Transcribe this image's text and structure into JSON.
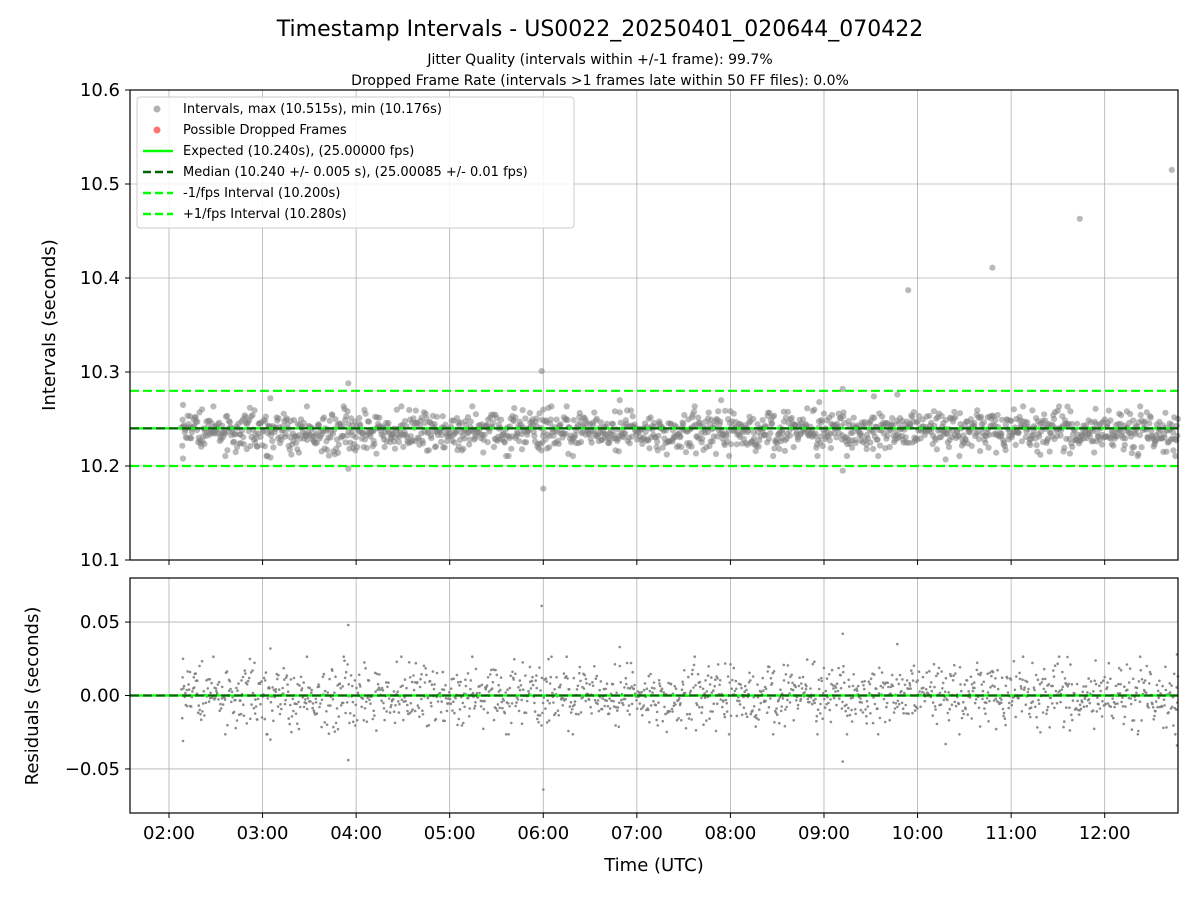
{
  "chart_data": {
    "type": "scatter",
    "title": "Timestamp Intervals - US0022_20250401_020644_070422",
    "subtitle_lines": [
      "Jitter Quality (intervals within +/-1 frame): 99.7%",
      "Dropped Frame Rate (intervals >1 frames late within 50 FF files): 0.0%"
    ],
    "xlabel": "Time (UTC)",
    "x_ticks": [
      "02:00",
      "03:00",
      "04:00",
      "05:00",
      "06:00",
      "07:00",
      "08:00",
      "09:00",
      "10:00",
      "11:00",
      "12:00"
    ],
    "x_range": [
      "01:35",
      "12:47"
    ],
    "grid": true,
    "panels": [
      {
        "id": "intervals",
        "ylabel": "Intervals (seconds)",
        "ylim": [
          10.1,
          10.6
        ],
        "y_ticks": [
          "10.1",
          "10.2",
          "10.3",
          "10.4",
          "10.5",
          "10.6"
        ],
        "legend_position": "upper-left",
        "legend": [
          {
            "label": "Intervals, max (10.515s), min (10.176s)",
            "marker": "circle",
            "color": "#808080"
          },
          {
            "label": "Possible Dropped Frames",
            "marker": "circle",
            "color": "#ff0000"
          },
          {
            "label": "Expected (10.240s), (25.00000 fps)",
            "line": "solid",
            "color": "#00ff00"
          },
          {
            "label": "Median (10.240 +/- 0.005 s), (25.00085 +/- 0.01 fps)",
            "line": "dashed",
            "color": "#006400"
          },
          {
            "label": "-1/fps Interval (10.200s)",
            "line": "dashed",
            "color": "#00ff00"
          },
          {
            "label": "+1/fps Interval (10.280s)",
            "line": "dashed",
            "color": "#00ff00"
          }
        ],
        "reference_lines": [
          {
            "name": "expected",
            "y": 10.24,
            "style": "solid",
            "color": "#00ff00"
          },
          {
            "name": "median",
            "y": 10.24,
            "style": "dashed",
            "color": "#006400"
          },
          {
            "name": "minus-1-fps",
            "y": 10.2,
            "style": "dashed",
            "color": "#00ff00"
          },
          {
            "name": "plus-1-fps",
            "y": 10.28,
            "style": "dashed",
            "color": "#00ff00"
          }
        ],
        "series": {
          "t_start": "02:08",
          "t_end": "12:47",
          "baseline": 10.237,
          "typical_spread": 0.012,
          "count": 1560,
          "color": "#808080",
          "outliers": [
            {
              "t": "02:09",
              "v": 10.265
            },
            {
              "t": "02:09",
              "v": 10.208
            },
            {
              "t": "03:05",
              "v": 10.272
            },
            {
              "t": "03:05",
              "v": 10.209
            },
            {
              "t": "03:55",
              "v": 10.288
            },
            {
              "t": "03:55",
              "v": 10.197
            },
            {
              "t": "05:59",
              "v": 10.301
            },
            {
              "t": "06:00",
              "v": 10.176
            },
            {
              "t": "06:00",
              "v": 10.26
            },
            {
              "t": "06:49",
              "v": 10.27
            },
            {
              "t": "07:54",
              "v": 10.27
            },
            {
              "t": "08:57",
              "v": 10.268
            },
            {
              "t": "09:12",
              "v": 10.282
            },
            {
              "t": "09:12",
              "v": 10.195
            },
            {
              "t": "09:32",
              "v": 10.274
            },
            {
              "t": "09:47",
              "v": 10.276
            },
            {
              "t": "09:54",
              "v": 10.387
            },
            {
              "t": "10:18",
              "v": 10.207
            },
            {
              "t": "10:48",
              "v": 10.411
            },
            {
              "t": "11:44",
              "v": 10.463
            },
            {
              "t": "12:43",
              "v": 10.515
            }
          ]
        }
      },
      {
        "id": "residuals",
        "ylabel": "Residuals (seconds)",
        "ylim": [
          -0.08,
          0.08
        ],
        "y_ticks": [
          "−0.05",
          "0.00",
          "0.05"
        ],
        "y_tick_values": [
          -0.05,
          0.0,
          0.05
        ],
        "reference_lines": [
          {
            "name": "zero-expected",
            "y": 0.0,
            "style": "solid",
            "color": "#00ff00"
          },
          {
            "name": "zero-median",
            "y": 0.0,
            "style": "dashed",
            "color": "#006400"
          }
        ],
        "series": {
          "t_start": "02:08",
          "t_end": "12:47",
          "baseline": 0.0,
          "typical_spread": 0.012,
          "count": 1560,
          "color": "#808080",
          "outliers": [
            {
              "t": "02:09",
              "v": 0.025
            },
            {
              "t": "02:09",
              "v": -0.031
            },
            {
              "t": "03:05",
              "v": 0.032
            },
            {
              "t": "03:05",
              "v": -0.03
            },
            {
              "t": "03:55",
              "v": 0.048
            },
            {
              "t": "03:55",
              "v": -0.044
            },
            {
              "t": "05:59",
              "v": 0.061
            },
            {
              "t": "06:00",
              "v": -0.064
            },
            {
              "t": "06:49",
              "v": 0.033
            },
            {
              "t": "09:12",
              "v": 0.042
            },
            {
              "t": "09:12",
              "v": -0.045
            },
            {
              "t": "09:47",
              "v": 0.035
            },
            {
              "t": "10:18",
              "v": -0.033
            },
            {
              "t": "12:47",
              "v": -0.034
            },
            {
              "t": "12:47",
              "v": 0.028
            }
          ]
        }
      }
    ]
  }
}
